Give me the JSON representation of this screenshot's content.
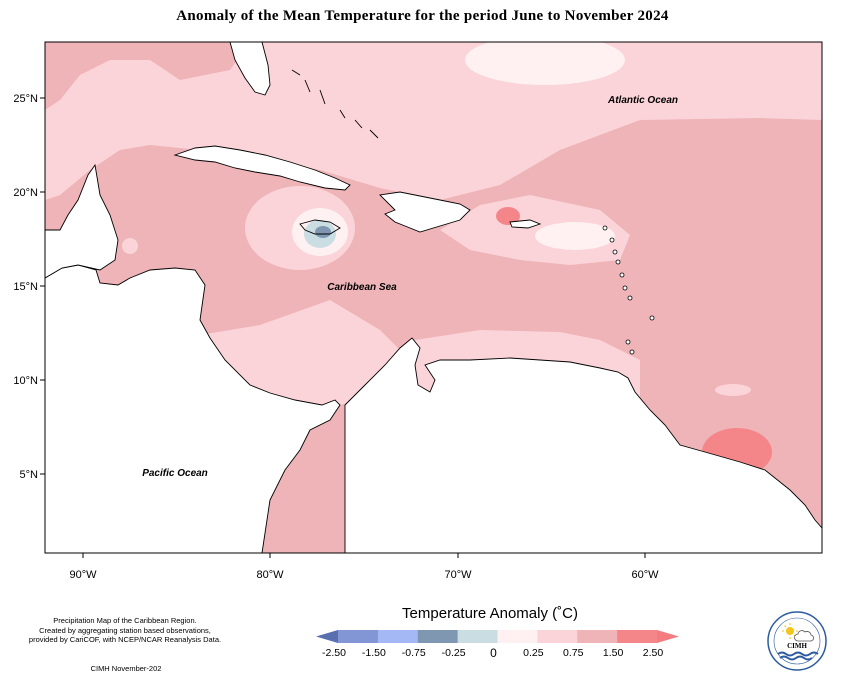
{
  "map": {
    "title": "Anomaly of the Mean Temperature for the period June to November 2024",
    "lat_labels": [
      "25°N",
      "20°N",
      "15°N",
      "10°N",
      "5°N"
    ],
    "lon_labels": [
      "90°W",
      "80°W",
      "70°W",
      "60°W"
    ],
    "ocean_labels": {
      "atlantic": "Atlantic Ocean",
      "caribbean": "Caribbean Sea",
      "pacific": "Pacific Ocean"
    }
  },
  "legend": {
    "title": "Temperature Anomaly (˚C)",
    "ticks": [
      "-2.50",
      "-1.50",
      "-0.75",
      "-0.25",
      "0",
      "0.25",
      "0.75",
      "1.50",
      "2.50"
    ],
    "colors": [
      "#5a6fae",
      "#8296d6",
      "#a3b8f5",
      "#7f97b0",
      "#c9dde3",
      "#fff1f1",
      "#fbd4d9",
      "#eeb4b8",
      "#f4868a",
      "#f27c80"
    ]
  },
  "footnote": {
    "line1": "Precipitation Map of the Caribbean Region.",
    "line2": "Created by aggregating station based observations,",
    "line3": "provided by CariCOF, with NCEP/NCAR Reanalysis Data.",
    "credit": "CIMH November-202"
  },
  "logo": {
    "text": "CIMH"
  }
}
